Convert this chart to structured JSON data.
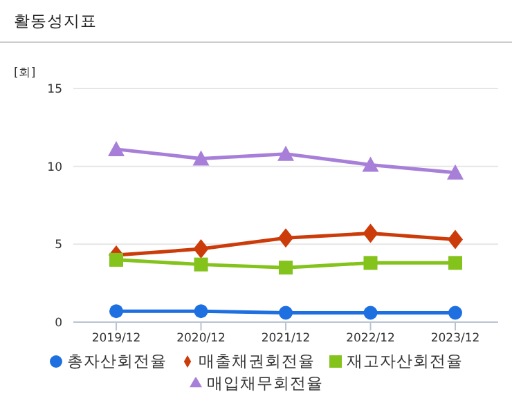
{
  "chart_data": {
    "type": "line",
    "title": "활동성지표",
    "ylabel": "[회]",
    "categories": [
      "2019/12",
      "2020/12",
      "2021/12",
      "2022/12",
      "2023/12"
    ],
    "series": [
      {
        "name": "총자산회전율",
        "color": "#1e6fe0",
        "marker": "circle",
        "values": [
          0.7,
          0.7,
          0.6,
          0.6,
          0.6
        ]
      },
      {
        "name": "매출채권회전율",
        "color": "#cc3b0a",
        "marker": "diamond",
        "values": [
          4.3,
          4.7,
          5.4,
          5.7,
          5.3
        ]
      },
      {
        "name": "재고자산회전율",
        "color": "#84c21c",
        "marker": "square",
        "values": [
          4.0,
          3.7,
          3.5,
          3.8,
          3.8
        ]
      },
      {
        "name": "매입채무회전율",
        "color": "#a77fd9",
        "marker": "triangle",
        "values": [
          11.1,
          10.5,
          10.8,
          10.1,
          9.6
        ]
      }
    ],
    "ylim": [
      0,
      15
    ],
    "yticks": [
      0,
      5,
      10,
      15
    ],
    "grid": "y",
    "legend": "bottom"
  }
}
